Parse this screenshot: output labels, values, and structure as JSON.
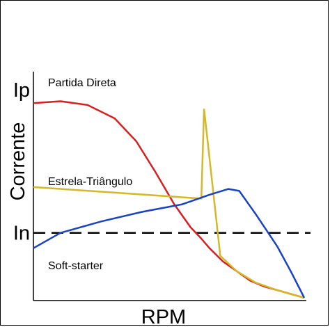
{
  "chart_data": {
    "type": "line",
    "xlabel": "RPM",
    "ylabel": "Corrente",
    "y_ticks": [
      "Ip",
      "In"
    ],
    "y_tick_values": [
      100,
      25
    ],
    "xlim": [
      0,
      100
    ],
    "ylim": [
      -9,
      100
    ],
    "reference_line": {
      "label": "In",
      "y": 25,
      "style": "dashed",
      "color": "#000000"
    },
    "series": [
      {
        "name": "Partida Direta",
        "color": "#d62020",
        "points": [
          [
            0,
            93
          ],
          [
            10,
            94
          ],
          [
            20,
            92
          ],
          [
            30,
            85
          ],
          [
            38,
            73
          ],
          [
            45,
            57
          ],
          [
            52,
            40
          ],
          [
            58,
            28
          ],
          [
            62,
            22
          ],
          [
            65,
            17
          ],
          [
            70,
            10
          ],
          [
            75,
            5
          ],
          [
            80,
            0
          ],
          [
            85,
            -3
          ],
          [
            90,
            -5
          ],
          [
            95,
            -7
          ],
          [
            100,
            -9
          ]
        ]
      },
      {
        "name": "Estrela-Triângulo",
        "color": "#d4b82a",
        "points": [
          [
            0,
            49
          ],
          [
            62,
            43
          ],
          [
            63,
            90
          ],
          [
            69,
            13
          ],
          [
            75,
            5
          ],
          [
            82,
            -1
          ],
          [
            90,
            -5
          ],
          [
            95,
            -7
          ],
          [
            100,
            -9
          ]
        ]
      },
      {
        "name": "Soft-starter",
        "color": "#1a43c2",
        "points": [
          [
            0,
            17
          ],
          [
            10,
            25
          ],
          [
            25,
            31
          ],
          [
            40,
            36
          ],
          [
            55,
            40
          ],
          [
            65,
            45
          ],
          [
            72,
            48
          ],
          [
            76,
            47
          ],
          [
            82,
            35
          ],
          [
            90,
            18
          ],
          [
            95,
            5
          ],
          [
            100,
            -9
          ]
        ]
      }
    ],
    "annotations": [
      {
        "text": "Partida Direta",
        "series": "Partida Direta"
      },
      {
        "text": "Estrela-Triângulo",
        "series": "Estrela-Triângulo"
      },
      {
        "text": "Soft-starter",
        "series": "Soft-starter"
      }
    ],
    "grid": false,
    "legend": "none"
  }
}
